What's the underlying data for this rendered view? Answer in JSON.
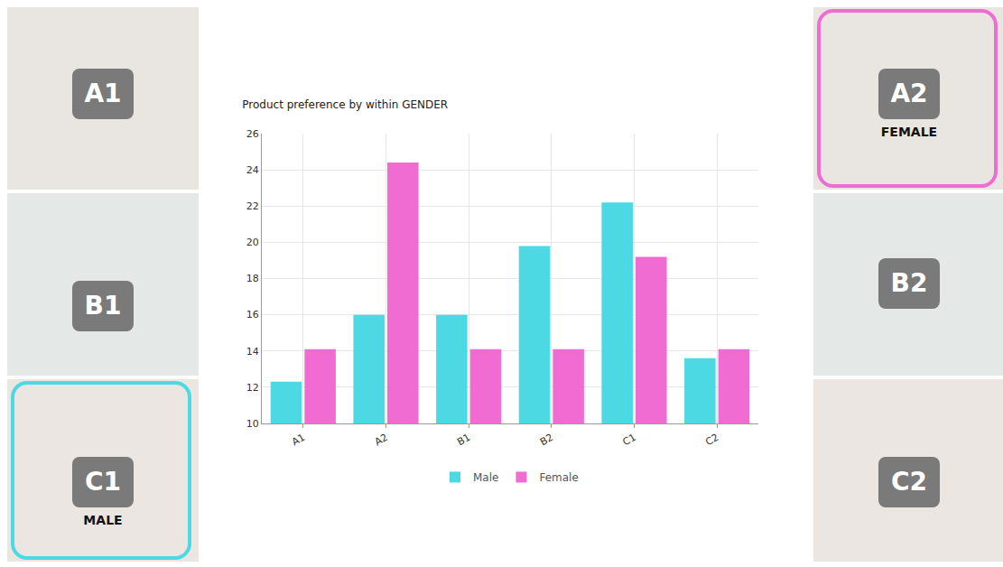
{
  "chart_data": {
    "type": "bar",
    "title": "Product preference by within GENDER",
    "categories": [
      "A1",
      "A2",
      "B1",
      "B2",
      "C1",
      "C2"
    ],
    "series": [
      {
        "name": "Male",
        "color": "#4dd9e3",
        "values": [
          12.3,
          16.0,
          16.0,
          19.8,
          22.2,
          13.6
        ]
      },
      {
        "name": "Female",
        "color": "#f06cd2",
        "values": [
          14.1,
          24.4,
          14.1,
          14.1,
          19.2,
          14.1
        ]
      }
    ],
    "ylim": [
      10,
      26
    ],
    "yticks": [
      10,
      12,
      14,
      16,
      18,
      20,
      22,
      24,
      26
    ],
    "grid": true,
    "legend": "bottom"
  },
  "panels": {
    "left": [
      {
        "label": "A1"
      },
      {
        "label": "B1"
      },
      {
        "label": "C1",
        "caption": "MALE"
      }
    ],
    "right": [
      {
        "label": "A2",
        "caption": "FEMALE"
      },
      {
        "label": "B2"
      },
      {
        "label": "C2"
      }
    ]
  }
}
